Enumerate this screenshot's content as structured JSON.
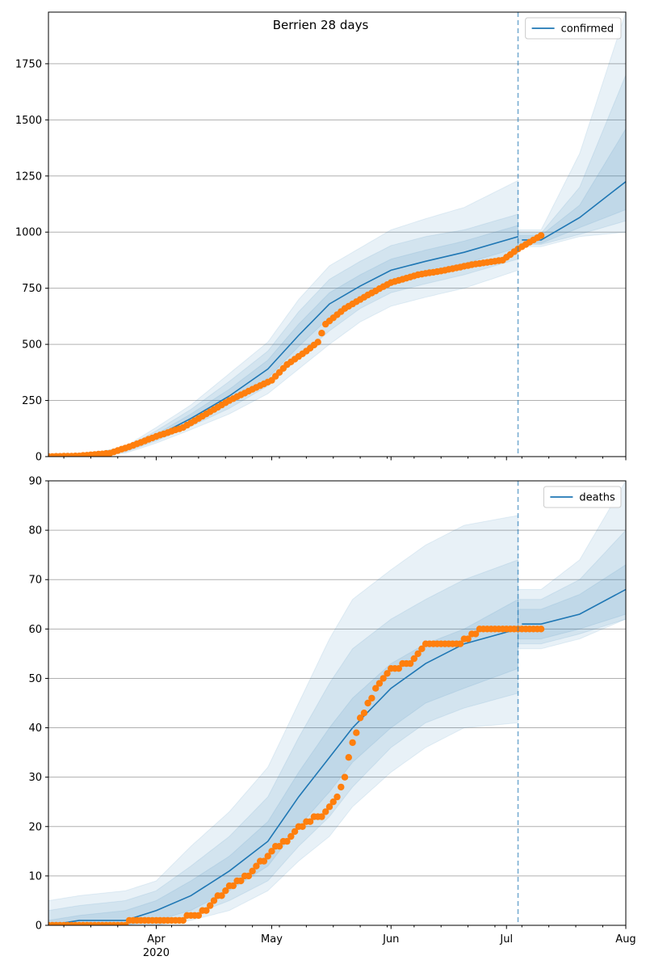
{
  "figure": {
    "title": "Berrien 28 days"
  },
  "colors": {
    "model": "#1f77b4",
    "observed": "#ff7f0e",
    "band": "#1f77b4",
    "grid": "#b0b0b0",
    "divider": "#1f77b4"
  },
  "x_axis": {
    "ticks": [
      {
        "date": "2020-04-01",
        "label": "Apr",
        "sublabel": "2020"
      },
      {
        "date": "2020-05-01",
        "label": "May",
        "sublabel": ""
      },
      {
        "date": "2020-06-01",
        "label": "Jun",
        "sublabel": ""
      },
      {
        "date": "2020-07-01",
        "label": "Jul",
        "sublabel": ""
      },
      {
        "date": "2020-08-01",
        "label": "Aug",
        "sublabel": ""
      }
    ],
    "range": [
      "2020-03-04",
      "2020-08-01"
    ]
  },
  "chart_data": [
    {
      "type": "line",
      "series_name": "confirmed",
      "legend_placement": "top-right",
      "grid": "horizontal",
      "ylim": [
        0,
        1980
      ],
      "yticks": [
        0,
        250,
        500,
        750,
        1000,
        1250,
        1500,
        1750
      ],
      "forecast_start": "2020-07-04",
      "model": {
        "x": [
          "2020-03-04",
          "2020-03-14",
          "2020-03-24",
          "2020-04-01",
          "2020-04-10",
          "2020-04-20",
          "2020-04-30",
          "2020-05-08",
          "2020-05-16",
          "2020-05-24",
          "2020-06-01",
          "2020-06-10",
          "2020-06-20",
          "2020-07-04",
          "2020-07-10",
          "2020-07-20",
          "2020-08-01"
        ],
        "median": [
          0,
          5,
          30,
          90,
          170,
          270,
          390,
          540,
          680,
          760,
          830,
          870,
          910,
          980,
          965,
          1065,
          1225
        ],
        "band_50": [
          [
            0,
            0
          ],
          [
            3,
            7
          ],
          [
            25,
            35
          ],
          [
            80,
            100
          ],
          [
            150,
            190
          ],
          [
            240,
            300
          ],
          [
            350,
            430
          ],
          [
            490,
            590
          ],
          [
            620,
            730
          ],
          [
            710,
            810
          ],
          [
            780,
            880
          ],
          [
            820,
            920
          ],
          [
            860,
            960
          ],
          [
            930,
            1030
          ],
          [
            950,
            985
          ],
          [
            1020,
            1120
          ],
          [
            1100,
            1460
          ]
        ],
        "band_80": [
          [
            0,
            0
          ],
          [
            2,
            9
          ],
          [
            20,
            40
          ],
          [
            70,
            115
          ],
          [
            135,
            210
          ],
          [
            215,
            335
          ],
          [
            315,
            470
          ],
          [
            440,
            645
          ],
          [
            560,
            790
          ],
          [
            660,
            870
          ],
          [
            730,
            940
          ],
          [
            770,
            980
          ],
          [
            810,
            1010
          ],
          [
            880,
            1080
          ],
          [
            945,
            995
          ],
          [
            990,
            1200
          ],
          [
            1050,
            1700
          ]
        ],
        "band_95": [
          [
            0,
            0
          ],
          [
            0,
            11
          ],
          [
            15,
            45
          ],
          [
            60,
            130
          ],
          [
            120,
            230
          ],
          [
            190,
            370
          ],
          [
            280,
            510
          ],
          [
            390,
            700
          ],
          [
            500,
            850
          ],
          [
            600,
            930
          ],
          [
            670,
            1010
          ],
          [
            710,
            1060
          ],
          [
            750,
            1110
          ],
          [
            830,
            1230
          ],
          [
            935,
            1010
          ],
          [
            980,
            1350
          ],
          [
            1000,
            1980
          ]
        ]
      },
      "observed": {
        "x": [
          "2020-03-04",
          "2020-03-12",
          "2020-03-20",
          "2020-03-26",
          "2020-04-01",
          "2020-04-08",
          "2020-04-14",
          "2020-04-20",
          "2020-04-26",
          "2020-05-01",
          "2020-05-05",
          "2020-05-10",
          "2020-05-13",
          "2020-05-15",
          "2020-05-20",
          "2020-05-26",
          "2020-06-01",
          "2020-06-08",
          "2020-06-15",
          "2020-06-22",
          "2020-06-30",
          "2020-07-04",
          "2020-07-10"
        ],
        "y": [
          0,
          3,
          15,
          50,
          90,
          130,
          190,
          250,
          300,
          340,
          410,
          470,
          510,
          590,
          660,
          720,
          775,
          810,
          830,
          855,
          875,
          925,
          985
        ]
      }
    },
    {
      "type": "line",
      "series_name": "deaths",
      "legend_placement": "top-right",
      "grid": "horizontal",
      "ylim": [
        0,
        90
      ],
      "yticks": [
        0,
        10,
        20,
        30,
        40,
        50,
        60,
        70,
        80,
        90
      ],
      "forecast_start": "2020-07-04",
      "model": {
        "x": [
          "2020-03-04",
          "2020-03-12",
          "2020-03-24",
          "2020-04-01",
          "2020-04-10",
          "2020-04-20",
          "2020-04-30",
          "2020-05-08",
          "2020-05-16",
          "2020-05-22",
          "2020-06-01",
          "2020-06-10",
          "2020-06-20",
          "2020-07-04",
          "2020-07-10",
          "2020-07-20",
          "2020-08-01"
        ],
        "median": [
          0,
          1,
          1,
          3,
          6,
          11,
          17,
          26,
          34,
          40,
          48,
          53,
          57,
          60,
          61,
          63,
          68
        ],
        "band_50": [
          [
            0,
            1
          ],
          [
            0,
            2
          ],
          [
            0,
            3
          ],
          [
            1,
            5
          ],
          [
            3,
            9
          ],
          [
            7,
            14
          ],
          [
            12,
            21
          ],
          [
            20,
            31
          ],
          [
            27,
            40
          ],
          [
            33,
            46
          ],
          [
            40,
            53
          ],
          [
            45,
            57
          ],
          [
            48,
            60
          ],
          [
            52,
            66
          ],
          [
            58,
            64
          ],
          [
            60,
            67
          ],
          [
            63,
            73
          ]
        ],
        "band_80": [
          [
            0,
            3
          ],
          [
            0,
            4
          ],
          [
            0,
            5
          ],
          [
            0,
            7
          ],
          [
            2,
            12
          ],
          [
            5,
            18
          ],
          [
            9,
            26
          ],
          [
            16,
            38
          ],
          [
            22,
            49
          ],
          [
            28,
            56
          ],
          [
            36,
            62
          ],
          [
            41,
            66
          ],
          [
            44,
            70
          ],
          [
            47,
            74
          ],
          [
            57,
            66
          ],
          [
            59,
            70
          ],
          [
            62,
            80
          ]
        ],
        "band_95": [
          [
            0,
            5
          ],
          [
            0,
            6
          ],
          [
            0,
            7
          ],
          [
            0,
            9
          ],
          [
            1,
            16
          ],
          [
            3,
            23
          ],
          [
            7,
            32
          ],
          [
            13,
            45
          ],
          [
            18,
            58
          ],
          [
            24,
            66
          ],
          [
            31,
            72
          ],
          [
            36,
            77
          ],
          [
            40,
            81
          ],
          [
            41,
            83
          ],
          [
            56,
            68
          ],
          [
            58,
            74
          ],
          [
            62,
            90
          ]
        ]
      },
      "observed": {
        "x": [
          "2020-03-04",
          "2020-03-20",
          "2020-03-30",
          "2020-04-05",
          "2020-04-12",
          "2020-04-19",
          "2020-04-26",
          "2020-05-01",
          "2020-05-06",
          "2020-05-10",
          "2020-05-14",
          "2020-05-18",
          "2020-05-20",
          "2020-05-21",
          "2020-05-24",
          "2020-05-29",
          "2020-06-01",
          "2020-06-06",
          "2020-06-10",
          "2020-06-18",
          "2020-06-25",
          "2020-07-04",
          "2020-07-10"
        ],
        "y": [
          0,
          0,
          1,
          1,
          2,
          7,
          11,
          15,
          18,
          21,
          22,
          26,
          30,
          34,
          42,
          49,
          52,
          53,
          57,
          57,
          60,
          60,
          60
        ]
      }
    }
  ]
}
